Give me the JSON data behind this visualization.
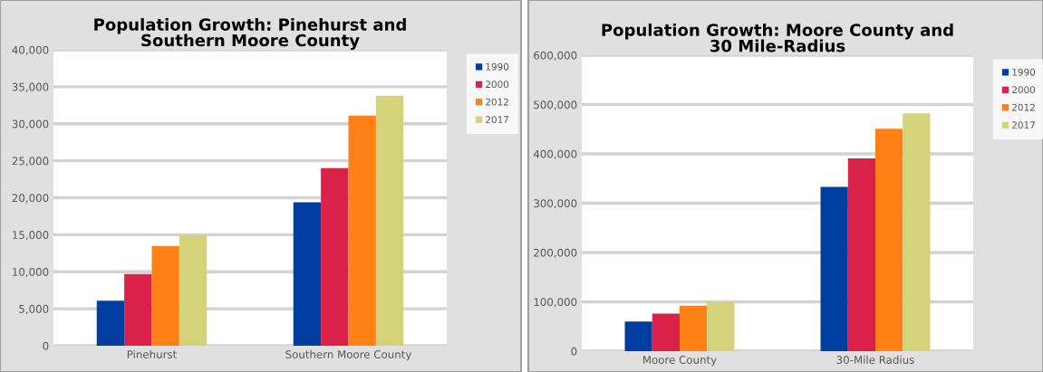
{
  "chart_data": [
    {
      "type": "bar",
      "title": "Population Growth: Pinehurst and\nSouthern Moore County",
      "categories": [
        "Pinehurst",
        "Southern Moore County"
      ],
      "series": [
        {
          "name": "1990",
          "color": "#003da0",
          "values": [
            6100,
            19400
          ]
        },
        {
          "name": "2000",
          "color": "#d9214a",
          "values": [
            9700,
            24000
          ]
        },
        {
          "name": "2012",
          "color": "#ff8014",
          "values": [
            13500,
            31100
          ]
        },
        {
          "name": "2017",
          "color": "#d4d27a",
          "values": [
            14900,
            33800
          ]
        }
      ],
      "ylim": [
        0,
        40000
      ],
      "yticks": [
        {
          "value": 0,
          "label": "0"
        },
        {
          "value": 5000,
          "label": "5,000"
        },
        {
          "value": 10000,
          "label": "10,000"
        },
        {
          "value": 15000,
          "label": "15,000"
        },
        {
          "value": 20000,
          "label": "20,000"
        },
        {
          "value": 25000,
          "label": "25,000"
        },
        {
          "value": 30000,
          "label": "30,000"
        },
        {
          "value": 35000,
          "label": "35,000"
        },
        {
          "value": 40000,
          "label": "40,000"
        }
      ],
      "grid": "y",
      "legend": "top right"
    },
    {
      "type": "bar",
      "title": "Population Growth: Moore County and\n30 Mile-Radius",
      "categories": [
        "Moore County",
        "30-Mile Radius"
      ],
      "series": [
        {
          "name": "1990",
          "color": "#003da0",
          "values": [
            60000,
            333000
          ]
        },
        {
          "name": "2000",
          "color": "#d9214a",
          "values": [
            76000,
            391000
          ]
        },
        {
          "name": "2012",
          "color": "#ff8014",
          "values": [
            92000,
            451000
          ]
        },
        {
          "name": "2017",
          "color": "#d4d27a",
          "values": [
            100000,
            482000
          ]
        }
      ],
      "ylim": [
        0,
        600000
      ],
      "yticks": [
        {
          "value": 0,
          "label": "0"
        },
        {
          "value": 100000,
          "label": "100,000"
        },
        {
          "value": 200000,
          "label": "200,000"
        },
        {
          "value": 300000,
          "label": "300,000"
        },
        {
          "value": 400000,
          "label": "400,000"
        },
        {
          "value": 500000,
          "label": "500,000"
        },
        {
          "value": 600000,
          "label": "600,000"
        }
      ],
      "grid": "y",
      "legend": "top right"
    }
  ]
}
